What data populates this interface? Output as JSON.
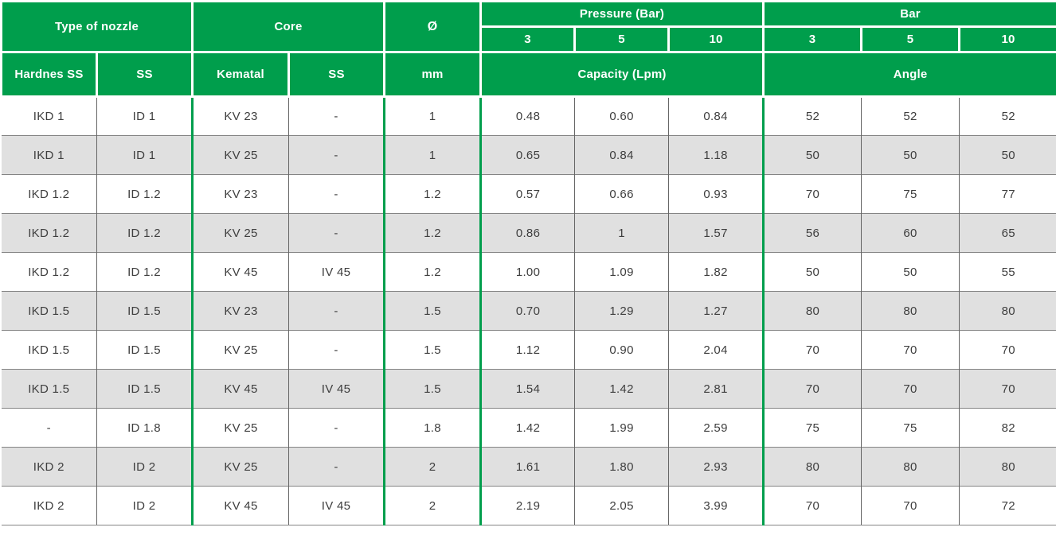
{
  "theme": {
    "green": "#009E4C",
    "row_alt_bg": "#E0E0E0",
    "text_color": "#3E3E3E"
  },
  "table": {
    "header": {
      "type_of_nozzle": "Type of nozzle",
      "core": "Core",
      "diameter_symbol": "Ø",
      "pressure": "Pressure (Bar)",
      "bar": "Bar",
      "pressure_values": [
        "3",
        "5",
        "10"
      ],
      "bar_values": [
        "3",
        "5",
        "10"
      ],
      "hardnes_ss": "Hardnes SS",
      "ss": "SS",
      "kematal": "Kematal",
      "core_ss": "SS",
      "mm": "mm",
      "capacity": "Capacity (Lpm)",
      "angle": "Angle"
    },
    "rows": [
      [
        "IKD 1",
        "ID 1",
        "KV 23",
        "-",
        "1",
        "0.48",
        "0.60",
        "0.84",
        "52",
        "52",
        "52"
      ],
      [
        "IKD 1",
        "ID 1",
        "KV 25",
        "-",
        "1",
        "0.65",
        "0.84",
        "1.18",
        "50",
        "50",
        "50"
      ],
      [
        "IKD 1.2",
        "ID 1.2",
        "KV 23",
        "-",
        "1.2",
        "0.57",
        "0.66",
        "0.93",
        "70",
        "75",
        "77"
      ],
      [
        "IKD 1.2",
        "ID 1.2",
        "KV 25",
        "-",
        "1.2",
        "0.86",
        "1",
        "1.57",
        "56",
        "60",
        "65"
      ],
      [
        "IKD 1.2",
        "ID 1.2",
        "KV 45",
        "IV 45",
        "1.2",
        "1.00",
        "1.09",
        "1.82",
        "50",
        "50",
        "55"
      ],
      [
        "IKD 1.5",
        "ID 1.5",
        "KV 23",
        "-",
        "1.5",
        "0.70",
        "1.29",
        "1.27",
        "80",
        "80",
        "80"
      ],
      [
        "IKD 1.5",
        "ID 1.5",
        "KV 25",
        "-",
        "1.5",
        "1.12",
        "0.90",
        "2.04",
        "70",
        "70",
        "70"
      ],
      [
        "IKD 1.5",
        "ID 1.5",
        "KV 45",
        "IV 45",
        "1.5",
        "1.54",
        "1.42",
        "2.81",
        "70",
        "70",
        "70"
      ],
      [
        "-",
        "ID 1.8",
        "KV 25",
        "-",
        "1.8",
        "1.42",
        "1.99",
        "2.59",
        "75",
        "75",
        "82"
      ],
      [
        "IKD 2",
        "ID 2",
        "KV 25",
        "-",
        "2",
        "1.61",
        "1.80",
        "2.93",
        "80",
        "80",
        "80"
      ],
      [
        "IKD 2",
        "ID 2",
        "KV 45",
        "IV 45",
        "2",
        "2.19",
        "2.05",
        "3.99",
        "70",
        "70",
        "72"
      ]
    ]
  }
}
